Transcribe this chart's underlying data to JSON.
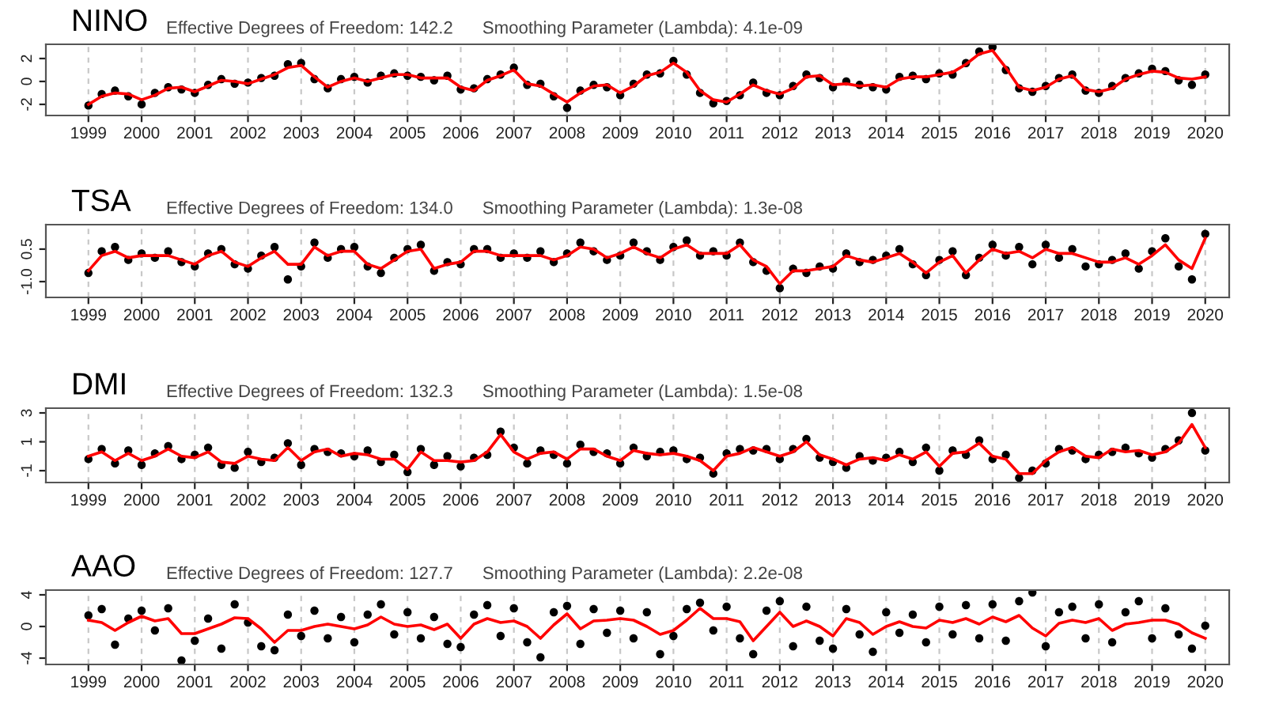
{
  "chart_data": [
    {
      "type": "scatter",
      "title": "NINO",
      "subtitle": "Effective Degrees of Freedom: 142.2      Smoothing Parameter (Lambda): 4.1e-09",
      "grid": "x",
      "x": [
        1999.0,
        1999.25,
        1999.5,
        1999.75,
        2000.0,
        2000.25,
        2000.5,
        2000.75,
        2001.0,
        2001.25,
        2001.5,
        2001.75,
        2002.0,
        2002.25,
        2002.5,
        2002.75,
        2003.0,
        2003.25,
        2003.5,
        2003.75,
        2004.0,
        2004.25,
        2004.5,
        2004.75,
        2005.0,
        2005.25,
        2005.5,
        2005.75,
        2006.0,
        2006.25,
        2006.5,
        2006.75,
        2007.0,
        2007.25,
        2007.5,
        2007.75,
        2008.0,
        2008.25,
        2008.5,
        2008.75,
        2009.0,
        2009.25,
        2009.5,
        2009.75,
        2010.0,
        2010.25,
        2010.5,
        2010.75,
        2011.0,
        2011.25,
        2011.5,
        2011.75,
        2012.0,
        2012.25,
        2012.5,
        2012.75,
        2013.0,
        2013.25,
        2013.5,
        2013.75,
        2014.0,
        2014.25,
        2014.5,
        2014.75,
        2015.0,
        2015.25,
        2015.5,
        2015.75,
        2016.0,
        2016.25,
        2016.5,
        2016.75,
        2017.0,
        2017.25,
        2017.5,
        2017.75,
        2018.0,
        2018.25,
        2018.5,
        2018.75,
        2019.0,
        2019.25,
        2019.5,
        2019.75,
        2020.0
      ],
      "xlim": [
        1998.2,
        2020.45
      ],
      "xticks": [
        1999,
        2000,
        2001,
        2002,
        2003,
        2004,
        2005,
        2006,
        2007,
        2008,
        2009,
        2010,
        2011,
        2012,
        2013,
        2014,
        2015,
        2016,
        2017,
        2018,
        2019,
        2020
      ],
      "ylim": [
        -2.97,
        3.24
      ],
      "yticks": [
        -2,
        0,
        2
      ],
      "series": [
        {
          "color": "#000000",
          "marker": "circle",
          "values": [
            -2.1,
            -1.1,
            -0.8,
            -1.3,
            -2.0,
            -1.0,
            -0.5,
            -0.7,
            -1.0,
            -0.3,
            0.2,
            -0.2,
            -0.1,
            0.3,
            0.5,
            1.5,
            1.6,
            0.2,
            -0.6,
            0.2,
            0.4,
            -0.1,
            0.5,
            0.7,
            0.5,
            0.4,
            0.1,
            0.5,
            -0.7,
            -0.6,
            0.2,
            0.6,
            1.2,
            -0.3,
            -0.2,
            -1.3,
            -2.3,
            -0.8,
            -0.3,
            -0.5,
            -1.2,
            -0.2,
            0.6,
            0.7,
            1.8,
            0.6,
            -1.0,
            -1.9,
            -1.7,
            -1.2,
            -0.1,
            -1.0,
            -1.2,
            -0.4,
            0.6,
            0.3,
            -0.5,
            0.0,
            -0.3,
            -0.5,
            -0.7,
            0.4,
            0.5,
            0.2,
            0.7,
            0.6,
            1.6,
            2.6,
            3.0,
            1.0,
            -0.6,
            -0.9,
            -0.4,
            0.3,
            0.6,
            -0.8,
            -1.0,
            -0.4,
            0.3,
            0.7,
            1.1,
            0.9,
            0.1,
            -0.3,
            0.6
          ]
        },
        {
          "type": "line",
          "color": "#ff0000",
          "values": [
            -2.0,
            -1.3,
            -1.0,
            -1.1,
            -1.6,
            -1.2,
            -0.6,
            -0.5,
            -0.9,
            -0.4,
            0.1,
            0.0,
            -0.2,
            0.2,
            0.6,
            1.2,
            1.4,
            0.4,
            -0.5,
            0.0,
            0.3,
            0.0,
            0.3,
            0.6,
            0.6,
            0.3,
            0.3,
            0.3,
            -0.5,
            -0.8,
            0.1,
            0.5,
            1.0,
            -0.2,
            -0.4,
            -1.1,
            -1.8,
            -1.0,
            -0.4,
            -0.3,
            -1.0,
            -0.4,
            0.5,
            0.8,
            1.6,
            0.8,
            -0.8,
            -1.6,
            -1.8,
            -1.1,
            -0.3,
            -0.8,
            -1.1,
            -0.6,
            0.4,
            0.5,
            -0.3,
            -0.2,
            -0.4,
            -0.3,
            -0.5,
            0.2,
            0.4,
            0.4,
            0.6,
            0.8,
            1.5,
            2.4,
            2.7,
            1.2,
            -0.5,
            -0.8,
            -0.5,
            0.2,
            0.5,
            -0.7,
            -0.9,
            -0.6,
            0.2,
            0.6,
            0.9,
            0.8,
            0.3,
            0.2,
            0.4
          ]
        }
      ]
    },
    {
      "type": "scatter",
      "title": "TSA",
      "subtitle": "Effective Degrees of Freedom: 134.0      Smoothing Parameter (Lambda): 1.3e-08",
      "grid": "x",
      "x": [
        1999.0,
        1999.25,
        1999.5,
        1999.75,
        2000.0,
        2000.25,
        2000.5,
        2000.75,
        2001.0,
        2001.25,
        2001.5,
        2001.75,
        2002.0,
        2002.25,
        2002.5,
        2002.75,
        2003.0,
        2003.25,
        2003.5,
        2003.75,
        2004.0,
        2004.25,
        2004.5,
        2004.75,
        2005.0,
        2005.25,
        2005.5,
        2005.75,
        2006.0,
        2006.25,
        2006.5,
        2006.75,
        2007.0,
        2007.25,
        2007.5,
        2007.75,
        2008.0,
        2008.25,
        2008.5,
        2008.75,
        2009.0,
        2009.25,
        2009.5,
        2009.75,
        2010.0,
        2010.25,
        2010.5,
        2010.75,
        2011.0,
        2011.25,
        2011.5,
        2011.75,
        2012.0,
        2012.25,
        2012.5,
        2012.75,
        2013.0,
        2013.25,
        2013.5,
        2013.75,
        2014.0,
        2014.25,
        2014.5,
        2014.75,
        2015.0,
        2015.25,
        2015.5,
        2015.75,
        2016.0,
        2016.25,
        2016.5,
        2016.75,
        2017.0,
        2017.25,
        2017.5,
        2017.75,
        2018.0,
        2018.25,
        2018.5,
        2018.75,
        2019.0,
        2019.25,
        2019.5,
        2019.75,
        2020.0
      ],
      "xlim": [
        1998.2,
        2020.45
      ],
      "xticks": [
        1999,
        2000,
        2001,
        2002,
        2003,
        2004,
        2005,
        2006,
        2007,
        2008,
        2009,
        2010,
        2011,
        2012,
        2013,
        2014,
        2015,
        2016,
        2017,
        2018,
        2019,
        2020
      ],
      "ylim": [
        -1.73,
        1.63
      ],
      "yticks": [
        {
          "value": -1,
          "label": "-1.0"
        },
        0.5
      ],
      "series": [
        {
          "color": "#000000",
          "marker": "circle",
          "values": [
            -0.6,
            0.4,
            0.6,
            0.0,
            0.3,
            0.1,
            0.4,
            -0.1,
            -0.3,
            0.3,
            0.5,
            -0.2,
            -0.4,
            0.2,
            0.6,
            -0.9,
            -0.3,
            0.8,
            0.1,
            0.5,
            0.6,
            -0.3,
            -0.6,
            0.1,
            0.5,
            0.7,
            -0.5,
            -0.1,
            -0.2,
            0.5,
            0.5,
            0.1,
            0.3,
            0.1,
            0.4,
            -0.1,
            0.3,
            0.8,
            0.4,
            0.0,
            0.2,
            0.8,
            0.4,
            0.0,
            0.6,
            0.9,
            0.2,
            0.4,
            0.2,
            0.8,
            -0.1,
            -0.5,
            -1.3,
            -0.4,
            -0.6,
            -0.3,
            -0.4,
            0.3,
            -0.1,
            0.0,
            0.2,
            0.5,
            -0.2,
            -0.7,
            0.0,
            0.4,
            -0.7,
            0.1,
            0.7,
            0.2,
            0.6,
            -0.2,
            0.7,
            0.1,
            0.5,
            -0.3,
            -0.2,
            0.0,
            0.3,
            -0.4,
            0.4,
            1.0,
            -0.3,
            -0.9,
            1.2
          ]
        },
        {
          "type": "line",
          "color": "#ff0000",
          "values": [
            -0.5,
            0.2,
            0.4,
            0.1,
            0.2,
            0.2,
            0.2,
            0.0,
            -0.2,
            0.2,
            0.4,
            -0.1,
            -0.3,
            0.1,
            0.4,
            -0.2,
            -0.2,
            0.6,
            0.2,
            0.4,
            0.4,
            -0.2,
            -0.4,
            0.0,
            0.4,
            0.5,
            -0.4,
            -0.2,
            -0.1,
            0.4,
            0.4,
            0.2,
            0.2,
            0.2,
            0.2,
            0.0,
            0.2,
            0.6,
            0.5,
            0.1,
            0.3,
            0.6,
            0.3,
            0.1,
            0.5,
            0.7,
            0.3,
            0.3,
            0.3,
            0.7,
            0.0,
            -0.3,
            -1.1,
            -0.5,
            -0.5,
            -0.4,
            -0.3,
            0.2,
            0.0,
            -0.1,
            0.1,
            0.3,
            -0.1,
            -0.6,
            -0.1,
            0.2,
            -0.6,
            0.0,
            0.5,
            0.3,
            0.4,
            0.1,
            0.5,
            0.3,
            0.3,
            0.1,
            -0.1,
            -0.1,
            0.1,
            -0.2,
            0.2,
            0.7,
            0.0,
            -0.4,
            1.0
          ]
        }
      ]
    },
    {
      "type": "scatter",
      "title": "DMI",
      "subtitle": "Effective Degrees of Freedom: 132.3      Smoothing Parameter (Lambda): 1.5e-08",
      "grid": "x",
      "x": [
        1999.0,
        1999.25,
        1999.5,
        1999.75,
        2000.0,
        2000.25,
        2000.5,
        2000.75,
        2001.0,
        2001.25,
        2001.5,
        2001.75,
        2002.0,
        2002.25,
        2002.5,
        2002.75,
        2003.0,
        2003.25,
        2003.5,
        2003.75,
        2004.0,
        2004.25,
        2004.5,
        2004.75,
        2005.0,
        2005.25,
        2005.5,
        2005.75,
        2006.0,
        2006.25,
        2006.5,
        2006.75,
        2007.0,
        2007.25,
        2007.5,
        2007.75,
        2008.0,
        2008.25,
        2008.5,
        2008.75,
        2009.0,
        2009.25,
        2009.5,
        2009.75,
        2010.0,
        2010.25,
        2010.5,
        2010.75,
        2011.0,
        2011.25,
        2011.5,
        2011.75,
        2012.0,
        2012.25,
        2012.5,
        2012.75,
        2013.0,
        2013.25,
        2013.5,
        2013.75,
        2014.0,
        2014.25,
        2014.5,
        2014.75,
        2015.0,
        2015.25,
        2015.5,
        2015.75,
        2016.0,
        2016.25,
        2016.5,
        2016.75,
        2017.0,
        2017.25,
        2017.5,
        2017.75,
        2018.0,
        2018.25,
        2018.5,
        2018.75,
        2019.0,
        2019.25,
        2019.5,
        2019.75,
        2020.0
      ],
      "xlim": [
        1998.2,
        2020.45
      ],
      "xticks": [
        1999,
        2000,
        2001,
        2002,
        2003,
        2004,
        2005,
        2006,
        2007,
        2008,
        2009,
        2010,
        2011,
        2012,
        2013,
        2014,
        2015,
        2016,
        2017,
        2018,
        2019,
        2020
      ],
      "ylim": [
        -1.82,
        3.33
      ],
      "yticks": [
        -1,
        1,
        3
      ],
      "series": [
        {
          "color": "#000000",
          "marker": "circle",
          "values": [
            -0.2,
            0.5,
            -0.5,
            0.4,
            -0.6,
            0.2,
            0.7,
            -0.2,
            0.1,
            0.6,
            -0.6,
            -0.8,
            0.3,
            -0.4,
            -0.1,
            0.9,
            -0.6,
            0.5,
            0.3,
            0.2,
            0.0,
            0.4,
            -0.4,
            0.1,
            -1.1,
            0.5,
            -0.6,
            0.0,
            -0.7,
            -0.1,
            0.1,
            1.7,
            0.6,
            -0.5,
            0.4,
            0.1,
            -0.5,
            0.8,
            0.3,
            0.2,
            -0.5,
            0.6,
            0.0,
            0.3,
            0.4,
            -0.2,
            -0.1,
            -1.2,
            0.2,
            0.5,
            0.4,
            0.5,
            -0.2,
            0.5,
            1.2,
            -0.1,
            -0.4,
            -0.8,
            0.0,
            -0.3,
            -0.1,
            0.3,
            -0.4,
            0.6,
            -1.0,
            0.4,
            0.1,
            1.1,
            -0.2,
            0.1,
            -1.5,
            -1.0,
            -0.5,
            0.5,
            0.4,
            -0.2,
            0.1,
            0.3,
            0.6,
            0.2,
            -0.1,
            0.5,
            1.1,
            3.0,
            0.4
          ]
        },
        {
          "type": "line",
          "color": "#ff0000",
          "values": [
            0.0,
            0.3,
            -0.3,
            0.2,
            -0.3,
            0.0,
            0.5,
            0.0,
            -0.1,
            0.3,
            -0.4,
            -0.5,
            0.0,
            -0.2,
            -0.3,
            0.6,
            -0.3,
            0.3,
            0.5,
            0.0,
            0.2,
            0.1,
            -0.2,
            -0.2,
            -0.9,
            0.3,
            -0.3,
            -0.3,
            -0.4,
            -0.3,
            0.3,
            1.5,
            0.3,
            -0.2,
            0.2,
            0.3,
            -0.2,
            0.5,
            0.5,
            0.0,
            -0.3,
            0.4,
            0.2,
            0.1,
            0.2,
            0.0,
            -0.3,
            -1.0,
            0.0,
            0.2,
            0.6,
            0.3,
            0.0,
            0.3,
            1.0,
            0.1,
            -0.2,
            -0.6,
            -0.2,
            -0.1,
            -0.3,
            0.1,
            -0.2,
            0.3,
            -0.7,
            0.2,
            0.3,
            0.9,
            0.0,
            -0.2,
            -1.2,
            -1.2,
            -0.3,
            0.3,
            0.6,
            0.0,
            -0.1,
            0.5,
            0.3,
            0.4,
            0.1,
            0.3,
            0.9,
            2.2,
            0.6
          ]
        }
      ]
    },
    {
      "type": "scatter",
      "title": "AAO",
      "subtitle": "Effective Degrees of Freedom: 127.7      Smoothing Parameter (Lambda): 2.2e-08",
      "grid": "x",
      "x": [
        1999.0,
        1999.25,
        1999.5,
        1999.75,
        2000.0,
        2000.25,
        2000.5,
        2000.75,
        2001.0,
        2001.25,
        2001.5,
        2001.75,
        2002.0,
        2002.25,
        2002.5,
        2002.75,
        2003.0,
        2003.25,
        2003.5,
        2003.75,
        2004.0,
        2004.25,
        2004.5,
        2004.75,
        2005.0,
        2005.25,
        2005.5,
        2005.75,
        2006.0,
        2006.25,
        2006.5,
        2006.75,
        2007.0,
        2007.25,
        2007.5,
        2007.75,
        2008.0,
        2008.25,
        2008.5,
        2008.75,
        2009.0,
        2009.25,
        2009.5,
        2009.75,
        2010.0,
        2010.25,
        2010.5,
        2010.75,
        2011.0,
        2011.25,
        2011.5,
        2011.75,
        2012.0,
        2012.25,
        2012.5,
        2012.75,
        2013.0,
        2013.25,
        2013.5,
        2013.75,
        2014.0,
        2014.25,
        2014.5,
        2014.75,
        2015.0,
        2015.25,
        2015.5,
        2015.75,
        2016.0,
        2016.25,
        2016.5,
        2016.75,
        2017.0,
        2017.25,
        2017.5,
        2017.75,
        2018.0,
        2018.25,
        2018.5,
        2018.75,
        2019.0,
        2019.25,
        2019.5,
        2019.75,
        2020.0
      ],
      "xlim": [
        1998.2,
        2020.45
      ],
      "xticks": [
        1999,
        2000,
        2001,
        2002,
        2003,
        2004,
        2005,
        2006,
        2007,
        2008,
        2009,
        2010,
        2011,
        2012,
        2013,
        2014,
        2015,
        2016,
        2017,
        2018,
        2019,
        2020
      ],
      "ylim": [
        -4.8,
        4.6
      ],
      "yticks": [
        -4,
        0,
        4
      ],
      "series": [
        {
          "color": "#000000",
          "marker": "circle",
          "values": [
            1.4,
            2.2,
            -2.3,
            1.0,
            2.0,
            -0.5,
            2.3,
            -4.3,
            -1.8,
            1.0,
            -2.8,
            2.8,
            0.5,
            -2.5,
            -3.0,
            1.5,
            -1.2,
            2.0,
            -1.5,
            1.2,
            -2.0,
            1.5,
            2.8,
            -1.0,
            1.8,
            -1.5,
            1.2,
            -2.2,
            -2.6,
            1.5,
            2.7,
            -1.2,
            2.3,
            -2.0,
            -3.9,
            1.8,
            2.6,
            -2.2,
            2.2,
            -0.8,
            2.0,
            -1.5,
            1.8,
            -3.5,
            -1.2,
            2.2,
            3.0,
            -0.5,
            2.5,
            -1.5,
            -3.5,
            2.0,
            3.2,
            -2.5,
            2.5,
            -1.8,
            -2.8,
            2.2,
            -1.0,
            -3.2,
            1.8,
            -0.8,
            1.5,
            -2.0,
            2.5,
            -1.0,
            2.7,
            -1.5,
            2.8,
            -1.8,
            3.2,
            4.3,
            -2.5,
            1.8,
            2.5,
            -1.5,
            2.8,
            -2.0,
            1.8,
            3.2,
            -1.5,
            2.3,
            -1.0,
            -2.8,
            0.1
          ]
        },
        {
          "type": "line",
          "color": "#ff0000",
          "values": [
            0.8,
            0.5,
            -0.5,
            0.5,
            1.3,
            0.7,
            1.0,
            -0.9,
            -0.9,
            -0.3,
            0.3,
            1.1,
            1.0,
            -0.3,
            -2.0,
            -0.5,
            -0.5,
            0.0,
            0.3,
            0.0,
            -0.3,
            0.2,
            1.2,
            0.3,
            0.0,
            0.2,
            -0.4,
            0.3,
            -1.5,
            0.3,
            1.0,
            0.5,
            0.7,
            0.0,
            -1.5,
            0.2,
            1.6,
            -0.3,
            0.7,
            0.8,
            1.0,
            0.8,
            0.0,
            -1.0,
            -0.5,
            0.8,
            2.3,
            1.0,
            1.0,
            0.6,
            -1.8,
            0.0,
            1.8,
            0.0,
            0.7,
            0.0,
            -1.2,
            1.0,
            0.5,
            -1.0,
            0.0,
            0.6,
            0.0,
            -0.2,
            0.8,
            0.5,
            1.0,
            0.3,
            1.2,
            0.6,
            1.4,
            -0.2,
            -1.2,
            0.4,
            0.8,
            0.5,
            1.0,
            -0.5,
            0.3,
            0.5,
            0.8,
            0.8,
            0.3,
            -0.8,
            -1.5
          ]
        }
      ]
    }
  ]
}
